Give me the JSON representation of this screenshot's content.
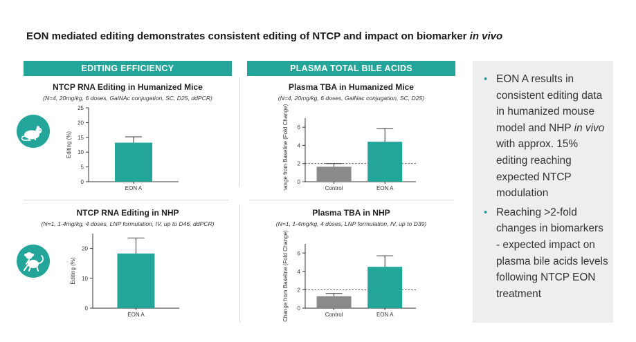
{
  "slide": {
    "title_main": "EON mediated editing demonstrates consistent editing of NTCP and impact on biomarker ",
    "title_em": "in vivo"
  },
  "sections": {
    "editing_header": "EDITING EFFICIENCY",
    "tba_header": "PLASMA TOTAL BILE ACIDS"
  },
  "panels": {
    "mouse_edit": {
      "title": "NTCP RNA Editing in Humanized Mice",
      "subtitle": "(N=4, 20mg/kg, 6 doses, GalNAc conjugation, SC, D25, ddPCR)"
    },
    "mouse_tba": {
      "title": "Plasma TBA in Humanized Mice",
      "subtitle": "(N=4, 20mg/kg, 6 doses, GalNac conjugation, SC, D25)"
    },
    "nhp_edit": {
      "title": "NTCP RNA Editing in NHP",
      "subtitle": "(N=1, 1-4mg/kg, 4 doses, LNP formulation, IV, up to D46, ddPCR)"
    },
    "nhp_tba": {
      "title": "Plasma TBA in NHP",
      "subtitle": "(N=1, 1-4mg/kg, 4 doses, LNP formulation, IV, up to D39)"
    }
  },
  "icons": {
    "mouse": "mouse-icon",
    "monkey": "monkey-icon"
  },
  "colors": {
    "teal": "#23a599",
    "gray": "#8a8a8a",
    "text": "#222222"
  },
  "sidebar": {
    "bullet1_a": "EON A results in consistent editing data in humanized mouse model and NHP ",
    "bullet1_em": "in vivo",
    "bullet1_b": " with approx. 15% editing reaching expected NTCP modulation",
    "bullet2": "Reaching >2-fold changes in biomarkers - expected impact on plasma bile acids levels following NTCP EON treatment"
  },
  "chart_data": [
    {
      "id": "mouse_edit",
      "type": "bar",
      "categories": [
        "EON A"
      ],
      "values": [
        13.2
      ],
      "errors": [
        2.0
      ],
      "ylabel": "Editing (%)",
      "ylim": [
        0,
        25
      ],
      "yticks": [
        0,
        5,
        10,
        15,
        20,
        25
      ],
      "colors": [
        "#23a599"
      ]
    },
    {
      "id": "mouse_tba",
      "type": "bar",
      "categories": [
        "Control",
        "EON A"
      ],
      "values": [
        1.65,
        4.4
      ],
      "errors": [
        0.35,
        1.45
      ],
      "ylabel": "Change from Baseline (Fold  Change)",
      "ylim": [
        0,
        7
      ],
      "yticks": [
        0,
        2,
        4,
        6
      ],
      "reference_line": 2,
      "colors": [
        "#8a8a8a",
        "#23a599"
      ]
    },
    {
      "id": "nhp_edit",
      "type": "bar",
      "categories": [
        "EON A"
      ],
      "values": [
        18.3
      ],
      "errors": [
        5.2
      ],
      "ylabel": "Editing (%)",
      "ylim": [
        0,
        25
      ],
      "yticks": [
        0,
        10,
        20
      ],
      "colors": [
        "#23a599"
      ]
    },
    {
      "id": "nhp_tba",
      "type": "bar",
      "categories": [
        "Control",
        "EON A"
      ],
      "values": [
        1.3,
        4.5
      ],
      "errors": [
        0.3,
        1.2
      ],
      "ylabel": "Change from Baseline (Fold  Change)",
      "ylim": [
        0,
        7
      ],
      "yticks": [
        0,
        2,
        4,
        6
      ],
      "reference_line": 2,
      "colors": [
        "#8a8a8a",
        "#23a599"
      ]
    }
  ]
}
